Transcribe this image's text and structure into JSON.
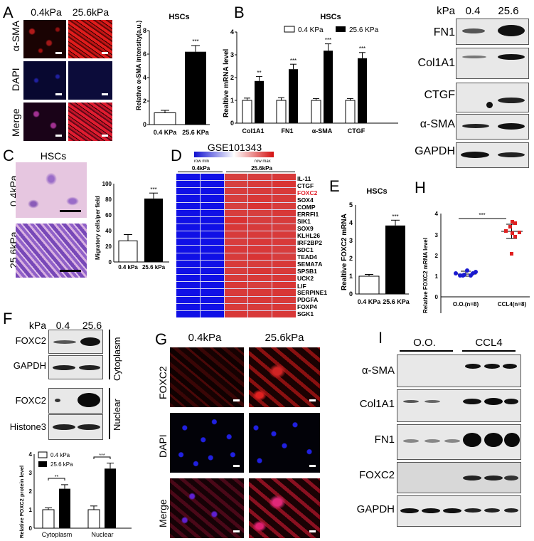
{
  "panels": {
    "A": {
      "letter": "A",
      "columns": [
        "0.4kPa",
        "25.6kPa"
      ],
      "rows": [
        "α-SMA",
        "DAPI",
        "Merge"
      ]
    },
    "B": {
      "letter": "B"
    },
    "B_blot": {
      "header": {
        "unit": "kPa",
        "lanes": [
          "0.4",
          "25.6"
        ]
      },
      "proteins": [
        "FN1",
        "Col1A1",
        "CTGF",
        "α-SMA",
        "GAPDH"
      ]
    },
    "C": {
      "letter": "C",
      "title": "HSCs",
      "rows": [
        "0.4kPa",
        "25.6kPa"
      ]
    },
    "D": {
      "letter": "D",
      "title": "GSE101343",
      "scale_min": "row min",
      "scale_max": "row max",
      "groups": [
        "0.4kPa",
        "25.6kPa"
      ],
      "highlight_color": "#e0202a"
    },
    "E": {
      "letter": "E"
    },
    "F": {
      "letter": "F",
      "header": {
        "unit": "kPa",
        "lanes": [
          "0.4",
          "25.6"
        ]
      },
      "proteins": [
        "FOXC2",
        "GAPDH",
        "FOXC2",
        "Histone3"
      ],
      "fractions": [
        "Cytoplasm",
        "Nuclear"
      ]
    },
    "G": {
      "letter": "G",
      "columns": [
        "0.4kPa",
        "25.6kPa"
      ],
      "rows": [
        "FOXC2",
        "DAPI",
        "Merge"
      ]
    },
    "H": {
      "letter": "H"
    },
    "I": {
      "letter": "I",
      "groups": [
        "O.O.",
        "CCL4"
      ],
      "proteins": [
        "α-SMA",
        "Col1A1",
        "FN1",
        "FOXC2",
        "GAPDH"
      ]
    }
  },
  "chart_data": [
    {
      "id": "A-bar",
      "type": "bar",
      "title": "HSCs",
      "categories": [
        "0.4 KPa",
        "25.6 KPa"
      ],
      "values": [
        1.0,
        6.2
      ],
      "errors": [
        0.2,
        0.5
      ],
      "colors": [
        "#ffffff",
        "#000000"
      ],
      "significance": [
        "",
        "***"
      ],
      "ylabel": "Relative α-SMA  intensity(a.u.)",
      "ylim": [
        0,
        8
      ],
      "yticks": [
        0,
        2,
        4,
        6,
        8
      ]
    },
    {
      "id": "B-bar",
      "type": "bar",
      "title": "HSCs",
      "categories": [
        "Col1A1",
        "FN1",
        "α-SMA",
        "CTGF"
      ],
      "series": [
        {
          "name": "0.4 KPa",
          "values": [
            1.0,
            1.0,
            1.0,
            1.0
          ],
          "errors": [
            0.1,
            0.12,
            0.08,
            0.08
          ],
          "color": "#ffffff"
        },
        {
          "name": "25.6 KPa",
          "values": [
            1.85,
            2.37,
            3.18,
            2.85
          ],
          "errors": [
            0.2,
            0.22,
            0.3,
            0.25
          ],
          "color": "#000000"
        }
      ],
      "significance": [
        "**",
        "***",
        "***",
        "***"
      ],
      "ylabel": "Realtive  mRNA level",
      "ylim": [
        0,
        4
      ],
      "yticks": [
        0,
        1,
        2,
        3,
        4
      ],
      "legend_position": "top"
    },
    {
      "id": "C-bar",
      "type": "bar",
      "categories": [
        "0.4 kPa",
        "25.6 kPa"
      ],
      "values": [
        27,
        81
      ],
      "errors": [
        8,
        7
      ],
      "colors": [
        "#ffffff",
        "#000000"
      ],
      "significance": [
        "",
        "***"
      ],
      "ylabel": "Migratory cells/per field",
      "ylim": [
        0,
        100
      ],
      "yticks": [
        0,
        20,
        40,
        60,
        80,
        100
      ]
    },
    {
      "id": "D-heatmap",
      "type": "heatmap",
      "title": "GSE101343",
      "rows": [
        "IL-11",
        "CTGF",
        "FOXC2",
        "SOX4",
        "COMP",
        "ERRFI1",
        "SIK1",
        "SOX9",
        "KLHL26",
        "IRF2BP2",
        "SDC1",
        "TEAD4",
        "SEMA7A",
        "SPSB1",
        "UCK2",
        "LIF",
        "SERPINE1",
        "PDGFA",
        "FOXP4",
        "SGK1"
      ],
      "columns": [
        "0.4kPa-1",
        "0.4kPa-2",
        "25.6kPa-1",
        "25.6kPa-2",
        "25.6kPa-3"
      ],
      "column_groups": [
        {
          "name": "0.4kPa",
          "span": 2
        },
        {
          "name": "25.6kPa",
          "span": 3
        }
      ],
      "values": [
        [
          -1,
          -1,
          0.72,
          0.75,
          0.8
        ],
        [
          -1,
          -1,
          0.7,
          0.78,
          0.85
        ],
        [
          -1,
          -1,
          0.74,
          0.76,
          0.78
        ],
        [
          -1,
          -1,
          0.72,
          0.8,
          0.76
        ],
        [
          -1,
          -1,
          0.7,
          0.86,
          0.75
        ],
        [
          -1,
          -1,
          0.74,
          0.72,
          0.8
        ],
        [
          -1,
          -1,
          0.88,
          0.74,
          0.76
        ],
        [
          -1,
          -1,
          0.8,
          0.76,
          0.74
        ],
        [
          -1,
          -1,
          0.76,
          0.78,
          0.78
        ],
        [
          -1,
          -1,
          0.74,
          0.8,
          0.78
        ],
        [
          -1,
          -1,
          0.8,
          0.8,
          0.74
        ],
        [
          -1,
          -1,
          0.76,
          0.85,
          0.74
        ],
        [
          -1,
          -1,
          0.78,
          0.76,
          0.8
        ],
        [
          -1,
          -1,
          0.74,
          0.82,
          0.78
        ],
        [
          -1,
          -1,
          0.76,
          0.78,
          0.8
        ],
        [
          -1,
          -1,
          0.8,
          0.74,
          0.82
        ],
        [
          -1,
          -1,
          0.78,
          0.8,
          0.82
        ],
        [
          -1,
          -1,
          0.76,
          0.8,
          0.78
        ],
        [
          -1,
          -1,
          0.78,
          0.76,
          0.8
        ],
        [
          -1,
          -1,
          0.8,
          0.78,
          0.8
        ]
      ],
      "highlight_row": "FOXC2",
      "colorscale": {
        "min": "#1010e0",
        "mid": "#ffffff",
        "max": "#d41010"
      }
    },
    {
      "id": "E-bar",
      "type": "bar",
      "title": "HSCs",
      "categories": [
        "0.4 KPa",
        "25.6 KPa"
      ],
      "values": [
        1.0,
        3.85
      ],
      "errors": [
        0.1,
        0.3
      ],
      "colors": [
        "#ffffff",
        "#000000"
      ],
      "significance": [
        "",
        "***"
      ],
      "ylabel": "Realtive FOXC2 mRNA",
      "ylim": [
        0,
        5
      ],
      "yticks": [
        0,
        1,
        2,
        3,
        4,
        5
      ]
    },
    {
      "id": "F-bar",
      "type": "bar",
      "categories": [
        "Cytoplasm",
        "Nuclear"
      ],
      "series": [
        {
          "name": "0.4 kPa",
          "values": [
            1.0,
            1.0
          ],
          "errors": [
            0.1,
            0.2
          ],
          "color": "#ffffff"
        },
        {
          "name": "25.6 kPa",
          "values": [
            2.13,
            3.22
          ],
          "errors": [
            0.22,
            0.3
          ],
          "color": "#000000"
        }
      ],
      "significance": [
        "**",
        "***"
      ],
      "ylabel": "Relative FOXC2 protein level",
      "ylim": [
        0,
        4
      ],
      "yticks": [
        0,
        1,
        2,
        3,
        4
      ],
      "legend_position": "top-left"
    },
    {
      "id": "H-scatter",
      "type": "scatter",
      "categories": [
        "O.O.(n=8)",
        "CCL4(n=8)"
      ],
      "series": [
        {
          "name": "O.O.(n=8)",
          "values": [
            1.1,
            1.0,
            1.05,
            1.25,
            1.0,
            1.2,
            1.0,
            1.15
          ],
          "mean": 1.1,
          "sd": 0.1,
          "color": "#1a1ad0",
          "marker": "circle"
        },
        {
          "name": "CCL4(n=8)",
          "values": [
            3.05,
            3.3,
            3.55,
            3.05,
            2.85,
            3.05,
            3.5,
            2.45
          ],
          "mean": 3.1,
          "sd": 0.35,
          "color": "#e02020",
          "marker": "square"
        }
      ],
      "significance": "***",
      "ylabel": "Relative FOXC2 mRNA level",
      "ylim": [
        0,
        4
      ],
      "yticks": [
        0,
        1,
        2,
        3,
        4
      ]
    }
  ]
}
